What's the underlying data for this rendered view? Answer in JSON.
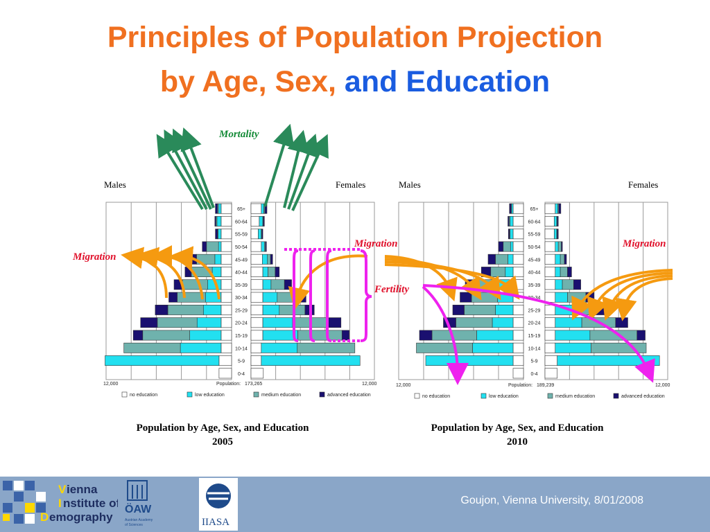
{
  "title": {
    "line1": "Principles of Population Projection",
    "line2_orange": "by Age, Sex,",
    "line2_blue": "and Education"
  },
  "annotations": {
    "mortality": "Mortality",
    "migration": "Migration",
    "fertility": "Fertility"
  },
  "chart_data": [
    {
      "type": "bar",
      "subtype": "population-pyramid",
      "left_label": "Males",
      "right_label": "Females",
      "age_groups": [
        "65+",
        "60-64",
        "55-59",
        "50-54",
        "45-49",
        "40-44",
        "35-39",
        "30-34",
        "25-29",
        "20-24",
        "15-19",
        "10-14",
        "5-9",
        "0-4"
      ],
      "axis_left": "12,000",
      "axis_right": "12,000",
      "population_label": "Population:",
      "population_value": "173,265",
      "legend": [
        "no education",
        "low education",
        "medium education",
        "advanced education"
      ],
      "colors": {
        "no education": "#ffffff",
        "low education": "#22e0f0",
        "medium education": "#6fb2ad",
        "advanced education": "#1a1070"
      },
      "axis_max": 12000,
      "males": {
        "no education": [
          1000,
          1000,
          1000,
          1000,
          1000,
          1000,
          1000,
          1000,
          1000,
          1000,
          1000,
          1000,
          1200,
          1200
        ],
        "low education": [
          250,
          400,
          300,
          250,
          600,
          850,
          1300,
          1500,
          1700,
          2300,
          3000,
          3900,
          10900,
          0
        ],
        "medium education": [
          100,
          100,
          50,
          1150,
          1750,
          2000,
          2400,
          2700,
          3400,
          3800,
          4500,
          5400,
          0,
          0
        ],
        "advanced education": [
          200,
          100,
          200,
          400,
          500,
          600,
          800,
          800,
          1200,
          1600,
          900,
          0,
          0,
          0
        ]
      },
      "females": {
        "no education": [
          1000,
          800,
          700,
          1000,
          1100,
          1150,
          1150,
          1150,
          1150,
          1150,
          1150,
          1000,
          1000,
          1200
        ],
        "low education": [
          250,
          350,
          300,
          300,
          500,
          500,
          800,
          1400,
          1600,
          2900,
          3400,
          3500,
          9600,
          0
        ],
        "medium education": [
          100,
          50,
          50,
          100,
          300,
          700,
          1300,
          2000,
          2500,
          3400,
          4300,
          5600,
          0,
          0
        ],
        "advanced education": [
          200,
          100,
          100,
          100,
          200,
          400,
          700,
          800,
          900,
          1300,
          700,
          0,
          0,
          0
        ]
      },
      "caption_line1": "Population by Age, Sex, and Education",
      "caption_line2": "2005"
    },
    {
      "type": "bar",
      "subtype": "population-pyramid",
      "left_label": "Males",
      "right_label": "Females",
      "age_groups": [
        "65+",
        "60-64",
        "55-59",
        "50-54",
        "45-49",
        "40-44",
        "35-39",
        "30-34",
        "25-29",
        "20-24",
        "15-19",
        "10-14",
        "5-9",
        "0-4"
      ],
      "axis_left": "12,000",
      "axis_right": "12,000",
      "population_label": "Population:",
      "population_value": "189,239",
      "legend": [
        "no education",
        "low education",
        "medium education",
        "advanced education"
      ],
      "colors": {
        "no education": "#ffffff",
        "low education": "#22e0f0",
        "medium education": "#6fb2ad",
        "advanced education": "#1a1070"
      },
      "axis_max": 12000,
      "males": {
        "no education": [
          1000,
          1000,
          1000,
          1000,
          1000,
          1000,
          1000,
          1000,
          1000,
          1000,
          1000,
          1000,
          1000,
          1000
        ],
        "low education": [
          150,
          300,
          300,
          250,
          500,
          750,
          1400,
          1500,
          1700,
          2000,
          3500,
          3900,
          8400,
          0
        ],
        "medium education": [
          50,
          100,
          50,
          700,
          1200,
          1400,
          2100,
          2500,
          3000,
          3500,
          4300,
          5400,
          0,
          0
        ],
        "advanced education": [
          150,
          100,
          100,
          450,
          700,
          900,
          1100,
          1100,
          1100,
          1200,
          1200,
          0,
          0,
          0
        ]
      },
      "females": {
        "no education": [
          1000,
          900,
          900,
          1000,
          1000,
          1000,
          1000,
          1000,
          1000,
          1000,
          1000,
          1000,
          1200,
          1200
        ],
        "low education": [
          250,
          250,
          250,
          300,
          500,
          500,
          700,
          1200,
          1700,
          2600,
          3400,
          3500,
          10000,
          0
        ],
        "medium education": [
          100,
          50,
          50,
          300,
          400,
          700,
          1100,
          1800,
          2300,
          3300,
          4600,
          5400,
          0,
          0
        ],
        "advanced education": [
          200,
          100,
          100,
          100,
          200,
          400,
          700,
          800,
          900,
          1200,
          800,
          0,
          0,
          0
        ]
      },
      "caption_line1": "Population by Age, Sex, and Education",
      "caption_line2": "2010"
    }
  ],
  "footer": {
    "citation": "Goujon,  Vienna University, 8/01/2008",
    "vid_line1_initial": "V",
    "vid_line1_rest": "ienna",
    "vid_line2_initial": "I",
    "vid_line2_rest": "nstitute of",
    "vid_line3_initial": "D",
    "vid_line3_rest": "emography",
    "oaw_text": "ÖAW",
    "oaw_sub1": "Austrian Academy",
    "oaw_sub2": "of Sciences",
    "iiasa_text": "IIASA"
  }
}
